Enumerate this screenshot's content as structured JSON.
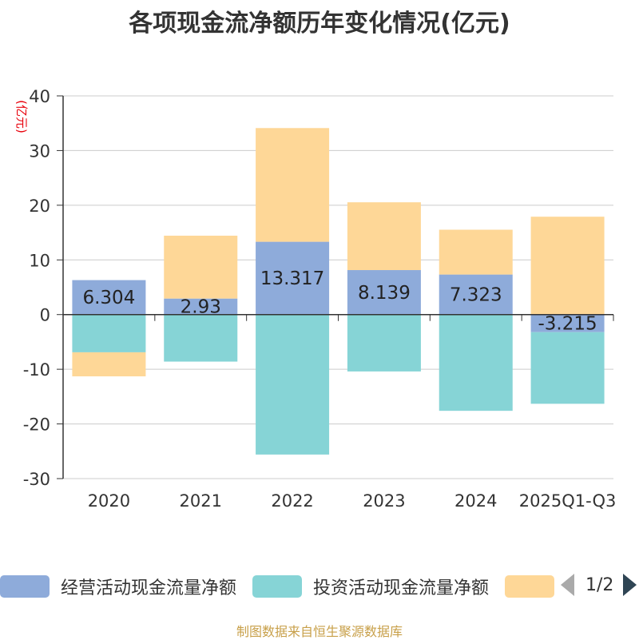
{
  "chart_data": {
    "type": "bar",
    "stacked": true,
    "title": "各项现金流净额历年变化情况(亿元)",
    "ylabel": "(亿元)",
    "xlabel": "",
    "ylim": [
      -30,
      40
    ],
    "yticks": [
      40,
      30,
      20,
      10,
      0,
      -10,
      -20,
      -30
    ],
    "categories": [
      "2020",
      "2021",
      "2022",
      "2023",
      "2024",
      "2025Q1-Q3"
    ],
    "series": [
      {
        "name": "经营活动现金流量净额",
        "color": "#8eabda",
        "values": [
          6.304,
          2.93,
          13.317,
          8.139,
          7.323,
          -3.215
        ],
        "labels": [
          "6.304",
          "2.93",
          "13.317",
          "8.139",
          "7.323",
          "-3.215"
        ]
      },
      {
        "name": "投资活动现金流量净额",
        "color": "#86d4d6",
        "values": [
          -6.9,
          -8.6,
          -25.6,
          -10.4,
          -17.6,
          -13.1
        ]
      },
      {
        "name": "",
        "color": "#fed797",
        "values": [
          -4.4,
          11.5,
          20.8,
          12.4,
          8.2,
          17.9
        ]
      }
    ]
  },
  "legend": {
    "page": "1/2"
  },
  "source": "制图数据来自恒生聚源数据库"
}
